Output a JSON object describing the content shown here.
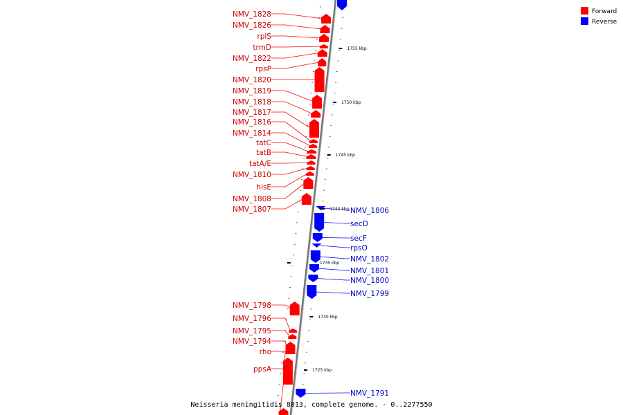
{
  "colors": {
    "forward": "#ff0000",
    "reverse": "#0000ff",
    "forward_label": "#cc0000",
    "reverse_label": "#0000cc",
    "backbone": "#888888"
  },
  "legend": {
    "forward": "Forward",
    "reverse": "Reverse"
  },
  "caption": "Neisseria meningitidis 8013, complete genome. - 0..2277550",
  "kbp_ticks": [
    "1755 kbp",
    "1750 kbp",
    "1745 kbp",
    "1740 kbp",
    "1735 kbp",
    "1730 kbp",
    "1725 kbp"
  ],
  "forward_genes": [
    "NMV_1828",
    "NMV_1826",
    "rplS",
    "trmD",
    "NMV_1822",
    "rpsP",
    "NMV_1820",
    "NMV_1819",
    "NMV_1818",
    "NMV_1817",
    "NMV_1816",
    "NMV_1814",
    "tatC",
    "tatB",
    "tatA/E",
    "NMV_1810",
    "hisE",
    "NMV_1808",
    "NMV_1807",
    "NMV_1798",
    "NMV_1796",
    "NMV_1795",
    "NMV_1794",
    "rho",
    "ppsA"
  ],
  "reverse_genes": [
    "NMV_1806",
    "secD",
    "secF",
    "rpsO",
    "NMV_1802",
    "NMV_1801",
    "NMV_1800",
    "NMV_1799",
    "NMV_1791"
  ]
}
